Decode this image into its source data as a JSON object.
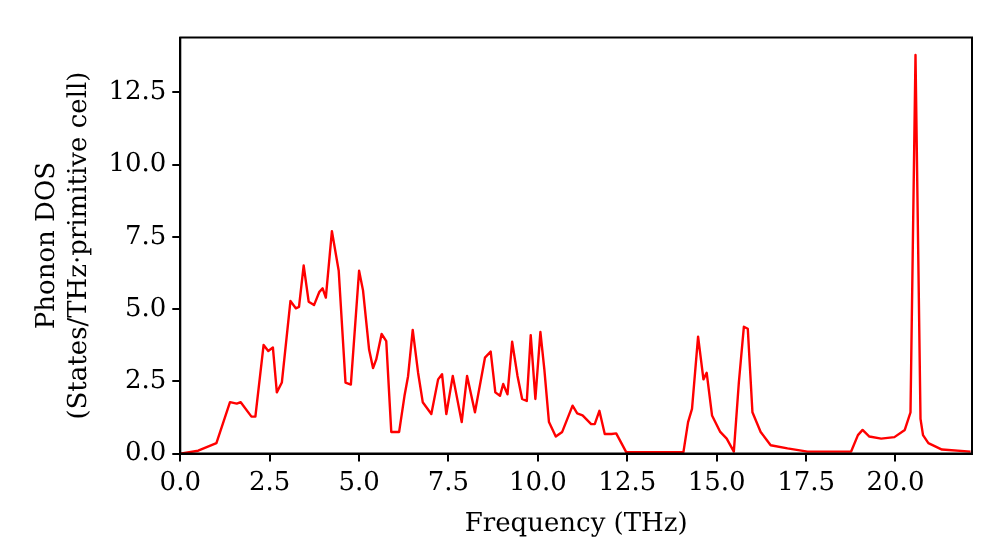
{
  "chart_data": {
    "type": "line",
    "xlabel": "Frequency (THz)",
    "ylabel": "Phonon DOS\n(States/THz·primitive cell)",
    "x": [
      0,
      0.5,
      1.01,
      1.39,
      1.58,
      1.69,
      1.99,
      2.1,
      2.33,
      2.46,
      2.59,
      2.7,
      2.84,
      3.08,
      3.23,
      3.32,
      3.45,
      3.59,
      3.74,
      3.89,
      3.98,
      4.07,
      4.24,
      4.43,
      4.62,
      4.77,
      5.0,
      5.11,
      5.28,
      5.39,
      5.48,
      5.63,
      5.76,
      5.9,
      6.12,
      6.27,
      6.37,
      6.5,
      6.65,
      6.78,
      7.02,
      7.21,
      7.32,
      7.44,
      7.62,
      7.87,
      8.02,
      8.24,
      8.52,
      8.68,
      8.81,
      8.94,
      9.03,
      9.15,
      9.28,
      9.43,
      9.56,
      9.69,
      9.8,
      9.93,
      10.07,
      10.18,
      10.31,
      10.5,
      10.68,
      10.97,
      11.1,
      11.25,
      11.49,
      11.59,
      11.72,
      11.87,
      12.06,
      12.19,
      12.47,
      14.07,
      14.2,
      14.31,
      14.48,
      14.63,
      14.72,
      14.87,
      15.1,
      15.28,
      15.48,
      15.62,
      15.76,
      15.87,
      16.0,
      16.23,
      16.51,
      16.98,
      17.54,
      18.76,
      18.95,
      19.08,
      19.27,
      19.6,
      19.97,
      20.26,
      20.42,
      20.56,
      20.7,
      20.77,
      20.92,
      21.3,
      22.1
    ],
    "series": [
      {
        "color": "#ff0000",
        "values": [
          0,
          0.1,
          0.36,
          1.78,
          1.73,
          1.78,
          1.28,
          1.28,
          3.76,
          3.55,
          3.67,
          2.12,
          2.46,
          5.28,
          5.03,
          5.08,
          6.51,
          5.26,
          5.14,
          5.6,
          5.72,
          5.4,
          7.7,
          6.33,
          2.46,
          2.39,
          6.33,
          5.65,
          3.6,
          2.96,
          3.26,
          4.14,
          3.89,
          0.75,
          0.75,
          2.0,
          2.68,
          4.28,
          2.8,
          1.78,
          1.37,
          2.57,
          2.75,
          1.37,
          2.69,
          1.09,
          2.69,
          1.43,
          3.32,
          3.53,
          2.12,
          2.0,
          2.41,
          2.05,
          3.87,
          2.69,
          1.89,
          1.82,
          4.1,
          1.89,
          4.21,
          2.92,
          1.09,
          0.59,
          0.75,
          1.66,
          1.39,
          1.32,
          1.02,
          1.02,
          1.48,
          0.68,
          0.68,
          0.7,
          0.05,
          0.05,
          1.09,
          1.55,
          4.05,
          2.57,
          2.8,
          1.32,
          0.75,
          0.52,
          0.07,
          2.46,
          4.39,
          4.32,
          1.43,
          0.75,
          0.29,
          0.18,
          0.07,
          0.07,
          0.64,
          0.82,
          0.59,
          0.52,
          0.57,
          0.82,
          1.43,
          13.8,
          1.2,
          0.64,
          0.36,
          0.14,
          0.07
        ]
      }
    ],
    "xlim": [
      0,
      22.14
    ],
    "ylim": [
      0,
      14.4
    ],
    "xticks": [
      {
        "value": 0,
        "label": "0.0"
      },
      2.5,
      {
        "value": 5,
        "label": "5.0"
      },
      7.5,
      {
        "value": 10,
        "label": "10.0"
      },
      12.5,
      {
        "value": 15,
        "label": "15.0"
      },
      17.5,
      {
        "value": 20,
        "label": "20.0"
      }
    ],
    "yticks": [
      {
        "value": 0,
        "label": "0.0"
      },
      2.5,
      {
        "value": 5,
        "label": "5.0"
      },
      7.5,
      {
        "value": 10,
        "label": "10.0"
      },
      12.5
    ],
    "grid": false,
    "legend": false,
    "marker": "none",
    "line_style": "solid"
  }
}
